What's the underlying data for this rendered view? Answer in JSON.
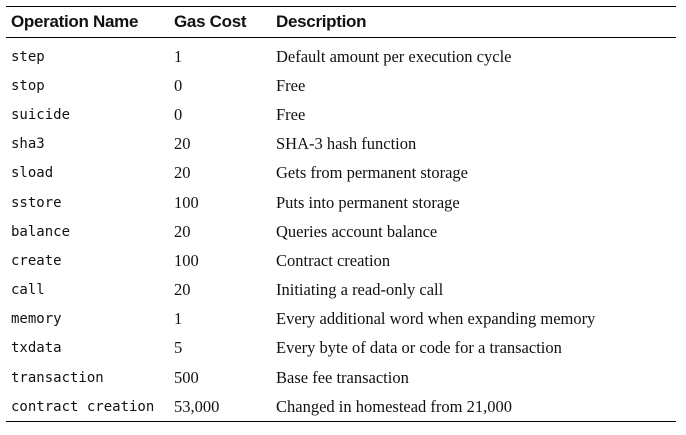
{
  "table": {
    "headers": {
      "operation": "Operation Name",
      "cost": "Gas Cost",
      "description": "Description"
    },
    "rows": [
      {
        "operation": "step",
        "cost": "1",
        "description": "Default amount per execution cycle"
      },
      {
        "operation": "stop",
        "cost": "0",
        "description": "Free"
      },
      {
        "operation": "suicide",
        "cost": "0",
        "description": "Free"
      },
      {
        "operation": "sha3",
        "cost": "20",
        "description": "SHA-3 hash function"
      },
      {
        "operation": "sload",
        "cost": "20",
        "description": "Gets from permanent storage"
      },
      {
        "operation": "sstore",
        "cost": "100",
        "description": "Puts into permanent storage"
      },
      {
        "operation": "balance",
        "cost": "20",
        "description": "Queries account balance"
      },
      {
        "operation": "create",
        "cost": "100",
        "description": "Contract creation"
      },
      {
        "operation": "call",
        "cost": "20",
        "description": "Initiating a read-only call"
      },
      {
        "operation": "memory",
        "cost": "1",
        "description": "Every additional word when expanding memory"
      },
      {
        "operation": "txdata",
        "cost": "5",
        "description": "Every byte of data or code for a transaction"
      },
      {
        "operation": "transaction",
        "cost": "500",
        "description": "Base fee transaction"
      },
      {
        "operation": "contract creation",
        "cost": "53,000",
        "description": "Changed in homestead from 21,000"
      }
    ]
  }
}
